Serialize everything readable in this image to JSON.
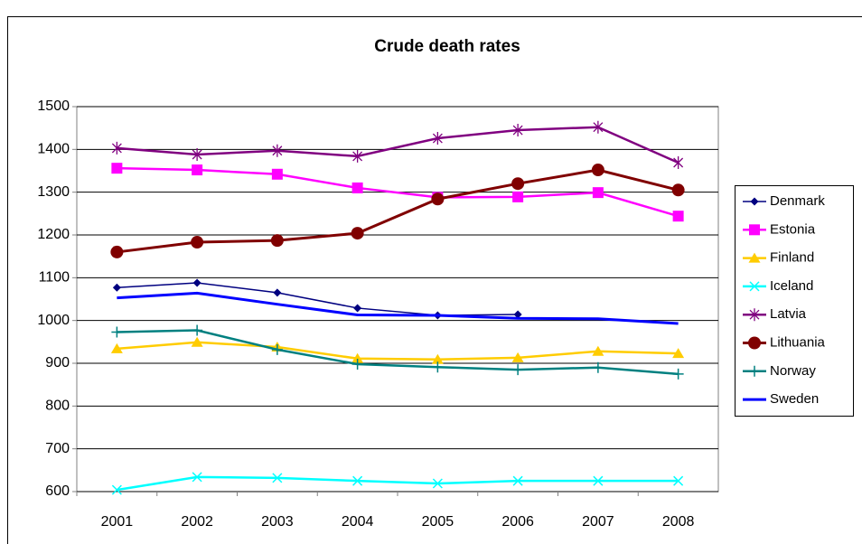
{
  "chart_data": {
    "type": "line",
    "title": "Crude death rates",
    "categories": [
      "2001",
      "2002",
      "2003",
      "2004",
      "2005",
      "2006",
      "2007",
      "2008"
    ],
    "ylim": [
      600,
      1500
    ],
    "yticks": [
      600,
      700,
      800,
      900,
      1000,
      1100,
      1200,
      1300,
      1400,
      1500
    ],
    "grid": true,
    "legend": "right",
    "series": [
      {
        "name": "Denmark",
        "color": "#000080",
        "marker": "diamond",
        "width": 1.5,
        "values": [
          1077,
          1088,
          1065,
          1029,
          1012,
          1014,
          null,
          null
        ]
      },
      {
        "name": "Estonia",
        "color": "#ff00ff",
        "marker": "square",
        "width": 2.5,
        "values": [
          1356,
          1352,
          1342,
          1310,
          1288,
          1289,
          1299,
          1244
        ]
      },
      {
        "name": "Finland",
        "color": "#ffcc00",
        "marker": "triangle",
        "width": 2.5,
        "values": [
          934,
          949,
          938,
          911,
          909,
          913,
          928,
          923
        ]
      },
      {
        "name": "Iceland",
        "color": "#00ffff",
        "marker": "x",
        "width": 2.5,
        "values": [
          604,
          634,
          632,
          625,
          619,
          625,
          625,
          625
        ]
      },
      {
        "name": "Latvia",
        "color": "#800080",
        "marker": "star",
        "width": 2.5,
        "values": [
          1403,
          1388,
          1397,
          1384,
          1426,
          1445,
          1452,
          1369
        ]
      },
      {
        "name": "Lithuania",
        "color": "#800000",
        "marker": "circle",
        "width": 3,
        "values": [
          1160,
          1183,
          1187,
          1204,
          1284,
          1320,
          1352,
          1305
        ]
      },
      {
        "name": "Norway",
        "color": "#008080",
        "marker": "plus",
        "width": 2.5,
        "values": [
          973,
          977,
          932,
          898,
          891,
          885,
          890,
          875
        ]
      },
      {
        "name": "Sweden",
        "color": "#0000ff",
        "marker": "none",
        "width": 3,
        "values": [
          1053,
          1064,
          1038,
          1013,
          1012,
          1005,
          1004,
          993
        ]
      }
    ]
  }
}
